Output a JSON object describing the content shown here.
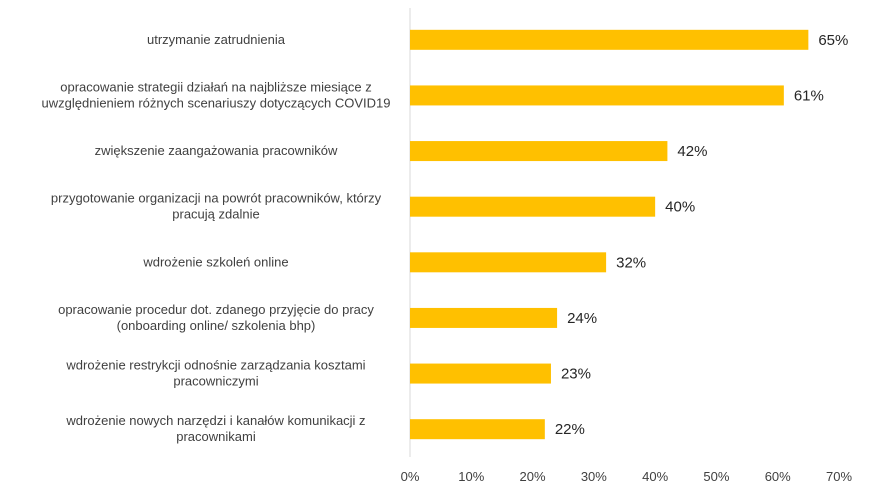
{
  "chart_data": {
    "type": "bar",
    "orientation": "horizontal",
    "categories": [
      [
        "utrzymanie zatrudnienia"
      ],
      [
        "opracowanie strategii działań na najbliższe miesiące z",
        "uwzględnieniem różnych scenariuszy dotyczących COVID19"
      ],
      [
        "zwiększenie zaangażowania pracowników"
      ],
      [
        "przygotowanie organizacji na powrót pracowników, którzy",
        "pracują zdalnie"
      ],
      [
        "wdrożenie szkoleń online"
      ],
      [
        "opracowanie procedur dot. zdanego przyjęcie do pracy",
        "(onboarding online/ szkolenia bhp)"
      ],
      [
        "wdrożenie restrykcji odnośnie zarządzania kosztami",
        "pracowniczymi"
      ],
      [
        "wdrożenie nowych narzędzi i kanałów  komunikacji z",
        "pracownikami"
      ]
    ],
    "values": [
      65,
      61,
      42,
      40,
      32,
      24,
      23,
      22
    ],
    "data_labels": [
      "65%",
      "61%",
      "42%",
      "40%",
      "32%",
      "24%",
      "23%",
      "22%"
    ],
    "xlim": [
      0,
      70
    ],
    "x_ticks": [
      "0%",
      "10%",
      "20%",
      "30%",
      "40%",
      "50%",
      "60%",
      "70%"
    ],
    "grid": false,
    "bar_color": "#FFC000",
    "axis_color": "#D9D9D9"
  }
}
